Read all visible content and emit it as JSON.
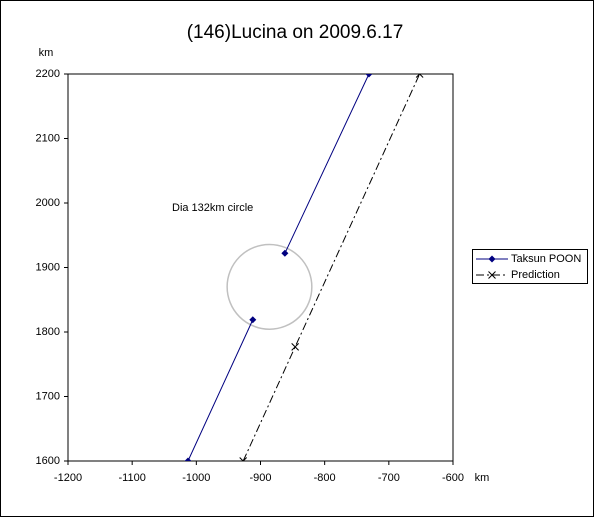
{
  "chart_data": {
    "type": "line",
    "title": "(146)Lucina on 2009.6.17",
    "x_label": "km",
    "y_label": "km",
    "xlim": [
      -1200,
      -600
    ],
    "xticks": [
      -1200,
      -1100,
      -1000,
      -900,
      -800,
      -700,
      -600
    ],
    "ylim": [
      1600,
      2200
    ],
    "yticks": [
      1600,
      1700,
      1800,
      1900,
      2000,
      2100,
      2200
    ],
    "grid": false,
    "legend": "right",
    "annotation": "Dia 132km circle",
    "circle": {
      "cx": -886,
      "cy": 1870,
      "r": 66,
      "color": "#c0c0c0"
    },
    "series": [
      {
        "name": "Taksun POON",
        "color": "#000080",
        "marker": "diamond",
        "dash": "solid",
        "x": [
          -1013,
          -912,
          null,
          -862,
          -731
        ],
        "values": [
          1600,
          1819,
          null,
          1922,
          2200
        ]
      },
      {
        "name": "Prediction",
        "color": "#000000",
        "marker": "x",
        "dash": "dashdot",
        "x": [
          -927,
          -846,
          -652
        ],
        "values": [
          1600,
          1777,
          2200
        ]
      }
    ]
  }
}
